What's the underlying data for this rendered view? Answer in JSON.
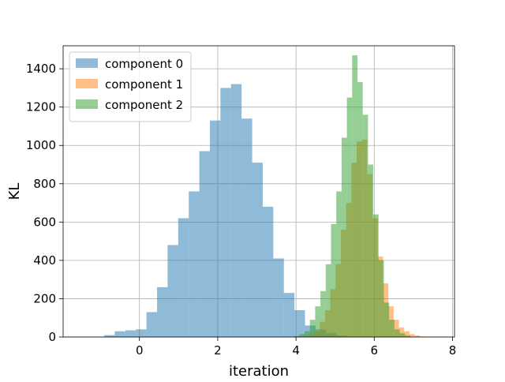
{
  "chart_data": {
    "type": "histogram",
    "xlabel": "iteration",
    "ylabel": "KL",
    "xlim": [
      -1.95,
      8.05
    ],
    "ylim": [
      0,
      1520
    ],
    "xticks": [
      0,
      2,
      4,
      6,
      8
    ],
    "yticks": [
      0,
      200,
      400,
      600,
      800,
      1000,
      1200,
      1400
    ],
    "grid": true,
    "legend_position": "top-left",
    "bar_alpha": 0.5,
    "series": [
      {
        "name": "component 0",
        "color": "#1f77b4",
        "bin_start": -0.9,
        "bin_width": 0.27,
        "counts": [
          10,
          30,
          35,
          40,
          130,
          260,
          480,
          620,
          760,
          970,
          1130,
          1300,
          1320,
          1140,
          910,
          680,
          410,
          230,
          140,
          60,
          40,
          20,
          8
        ]
      },
      {
        "name": "component 1",
        "color": "#ff7f0e",
        "bin_start": 4.2,
        "bin_width": 0.135,
        "counts": [
          5,
          15,
          30,
          80,
          140,
          250,
          380,
          560,
          700,
          910,
          1020,
          1030,
          850,
          620,
          420,
          280,
          160,
          90,
          50,
          30,
          15,
          8,
          3
        ]
      },
      {
        "name": "component 2",
        "color": "#2ca02c",
        "bin_start": 3.95,
        "bin_width": 0.135,
        "counts": [
          5,
          15,
          30,
          90,
          160,
          240,
          380,
          590,
          760,
          1040,
          1250,
          1470,
          1330,
          1160,
          900,
          640,
          400,
          180,
          90,
          40,
          20,
          8
        ]
      }
    ]
  }
}
